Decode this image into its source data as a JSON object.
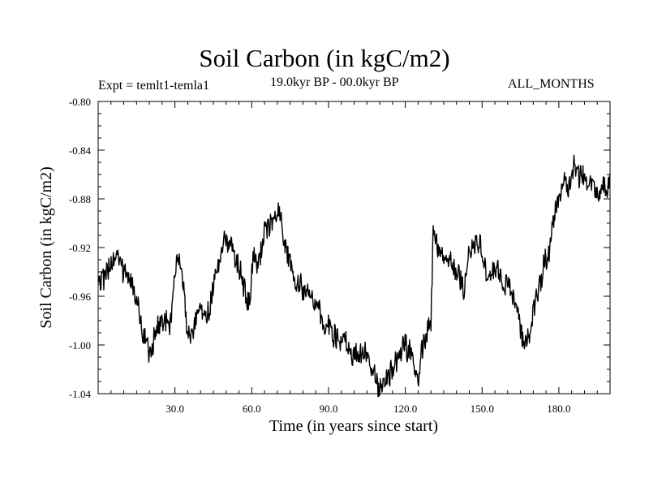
{
  "chart_data": {
    "type": "line",
    "title": "Soil Carbon (in kgC/m2)",
    "subtitle_left": "Expt = temlt1-temla1",
    "subtitle_center": "19.0kyr BP - 00.0kyr BP",
    "subtitle_right": "ALL_MONTHS",
    "xlabel": "Time (in years since start)",
    "ylabel": "Soil Carbon (in kgC/m2)",
    "xlim": [
      0,
      200
    ],
    "ylim": [
      -1.04,
      -0.8
    ],
    "xticks": [
      30,
      60,
      90,
      120,
      150,
      180
    ],
    "xtick_labels": [
      "30.0",
      "60.0",
      "90.0",
      "120.0",
      "150.0",
      "180.0"
    ],
    "yticks": [
      -1.04,
      -1.0,
      -0.96,
      -0.92,
      -0.88,
      -0.84,
      -0.8
    ],
    "ytick_labels": [
      "-1.04",
      "-1.00",
      "-0.96",
      "-0.92",
      "-0.88",
      "-0.84",
      "-0.80"
    ],
    "series": [
      {
        "name": "Soil Carbon",
        "x": [
          0,
          3,
          5,
          7,
          10,
          13,
          15,
          17,
          19,
          20,
          22,
          25,
          28,
          30,
          32,
          33,
          35,
          38,
          40,
          42,
          45,
          47,
          49,
          52,
          55,
          57,
          59,
          61,
          63,
          65,
          67,
          69,
          70,
          72,
          75,
          77,
          80,
          82,
          85,
          88,
          90,
          93,
          95,
          97,
          100,
          103,
          105,
          107,
          109,
          110,
          112,
          115,
          117,
          120,
          122,
          124,
          125,
          127,
          129,
          130,
          131,
          133,
          135,
          138,
          140,
          143,
          145,
          147,
          150,
          152,
          154,
          156,
          159,
          162,
          164,
          166,
          168,
          170,
          172,
          174,
          176,
          178,
          180,
          182,
          184,
          186,
          188,
          190,
          192,
          194,
          196,
          198,
          200
        ],
        "y": [
          -0.955,
          -0.942,
          -0.935,
          -0.925,
          -0.94,
          -0.95,
          -0.963,
          -0.985,
          -1.0,
          -1.01,
          -0.99,
          -0.98,
          -0.985,
          -0.945,
          -0.925,
          -0.945,
          -0.995,
          -0.985,
          -0.965,
          -0.98,
          -0.955,
          -0.935,
          -0.915,
          -0.92,
          -0.935,
          -0.955,
          -0.965,
          -0.925,
          -0.935,
          -0.905,
          -0.905,
          -0.895,
          -0.89,
          -0.905,
          -0.935,
          -0.945,
          -0.955,
          -0.96,
          -0.965,
          -0.98,
          -0.985,
          -0.995,
          -0.995,
          -1.0,
          -1.01,
          -1.005,
          -1.01,
          -1.02,
          -1.03,
          -1.035,
          -1.03,
          -1.02,
          -1.01,
          -1.0,
          -1.005,
          -1.02,
          -1.025,
          -1.0,
          -0.985,
          -0.985,
          -0.9,
          -0.92,
          -0.925,
          -0.935,
          -0.94,
          -0.955,
          -0.925,
          -0.915,
          -0.92,
          -0.945,
          -0.935,
          -0.94,
          -0.95,
          -0.955,
          -0.975,
          -0.995,
          -0.995,
          -0.975,
          -0.955,
          -0.935,
          -0.925,
          -0.9,
          -0.875,
          -0.868,
          -0.87,
          -0.852,
          -0.86,
          -0.863,
          -0.868,
          -0.87,
          -0.875,
          -0.872,
          -0.865
        ]
      }
    ]
  }
}
